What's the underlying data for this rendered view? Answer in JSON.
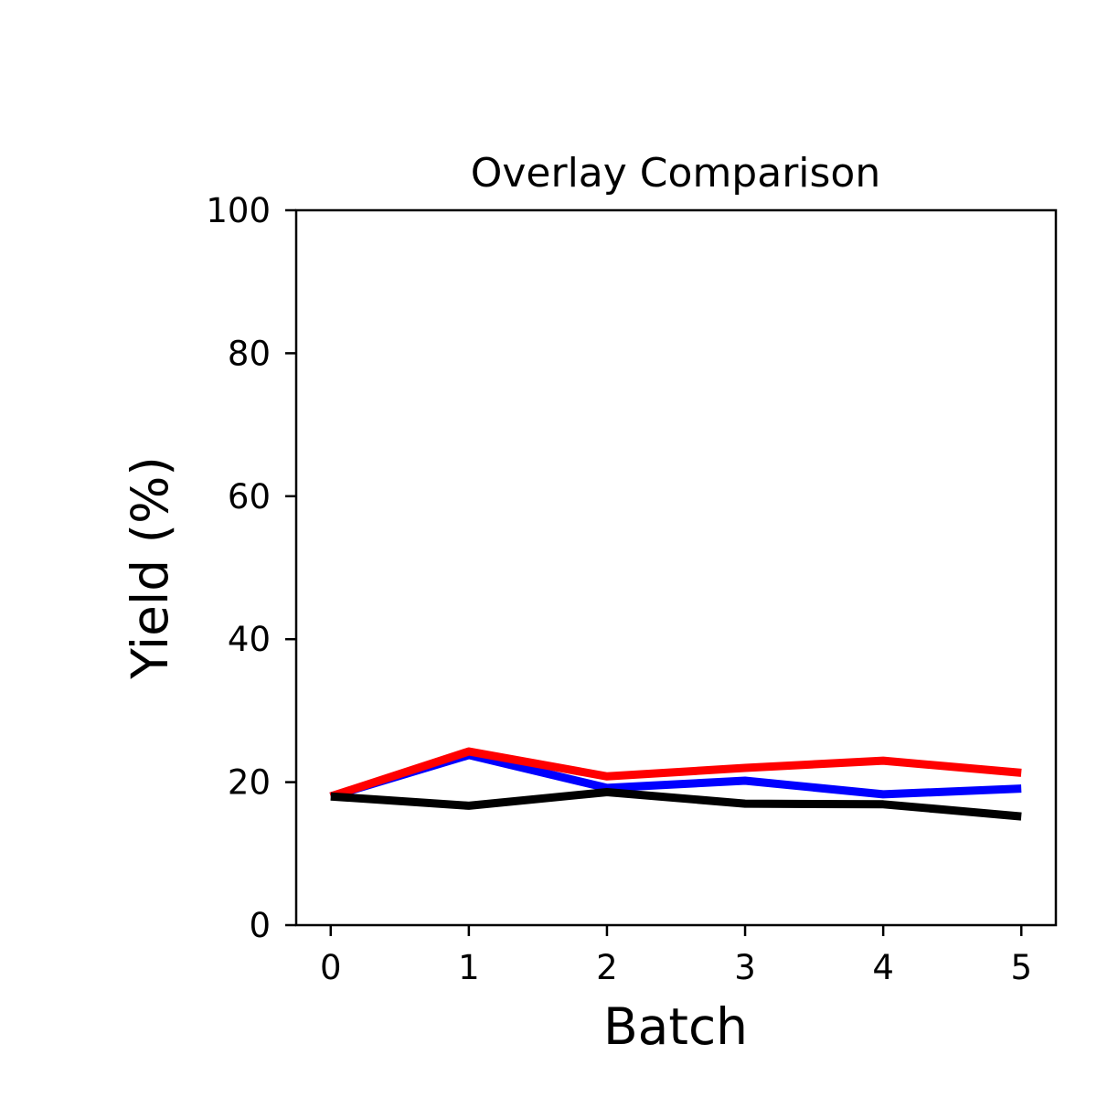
{
  "chart_data": {
    "type": "line",
    "title": "Overlay Comparison",
    "xlabel": "Batch",
    "ylabel": "Yield (%)",
    "x": [
      0,
      1,
      2,
      3,
      4,
      5
    ],
    "xticks": [
      "0",
      "1",
      "2",
      "3",
      "4",
      "5"
    ],
    "yticks": [
      "0",
      "20",
      "40",
      "60",
      "80",
      "100"
    ],
    "xlim": [
      -0.25,
      5.25
    ],
    "ylim": [
      0,
      100
    ],
    "grid": false,
    "series": [
      {
        "color": "#0000ff",
        "values": [
          18.0,
          23.8,
          19.2,
          20.2,
          18.3,
          19.1
        ]
      },
      {
        "color": "#ff0000",
        "values": [
          18.0,
          24.3,
          20.8,
          22.0,
          23.0,
          21.3
        ]
      },
      {
        "color": "#000000",
        "values": [
          18.0,
          16.7,
          18.6,
          17.0,
          16.9,
          15.2
        ]
      }
    ]
  }
}
